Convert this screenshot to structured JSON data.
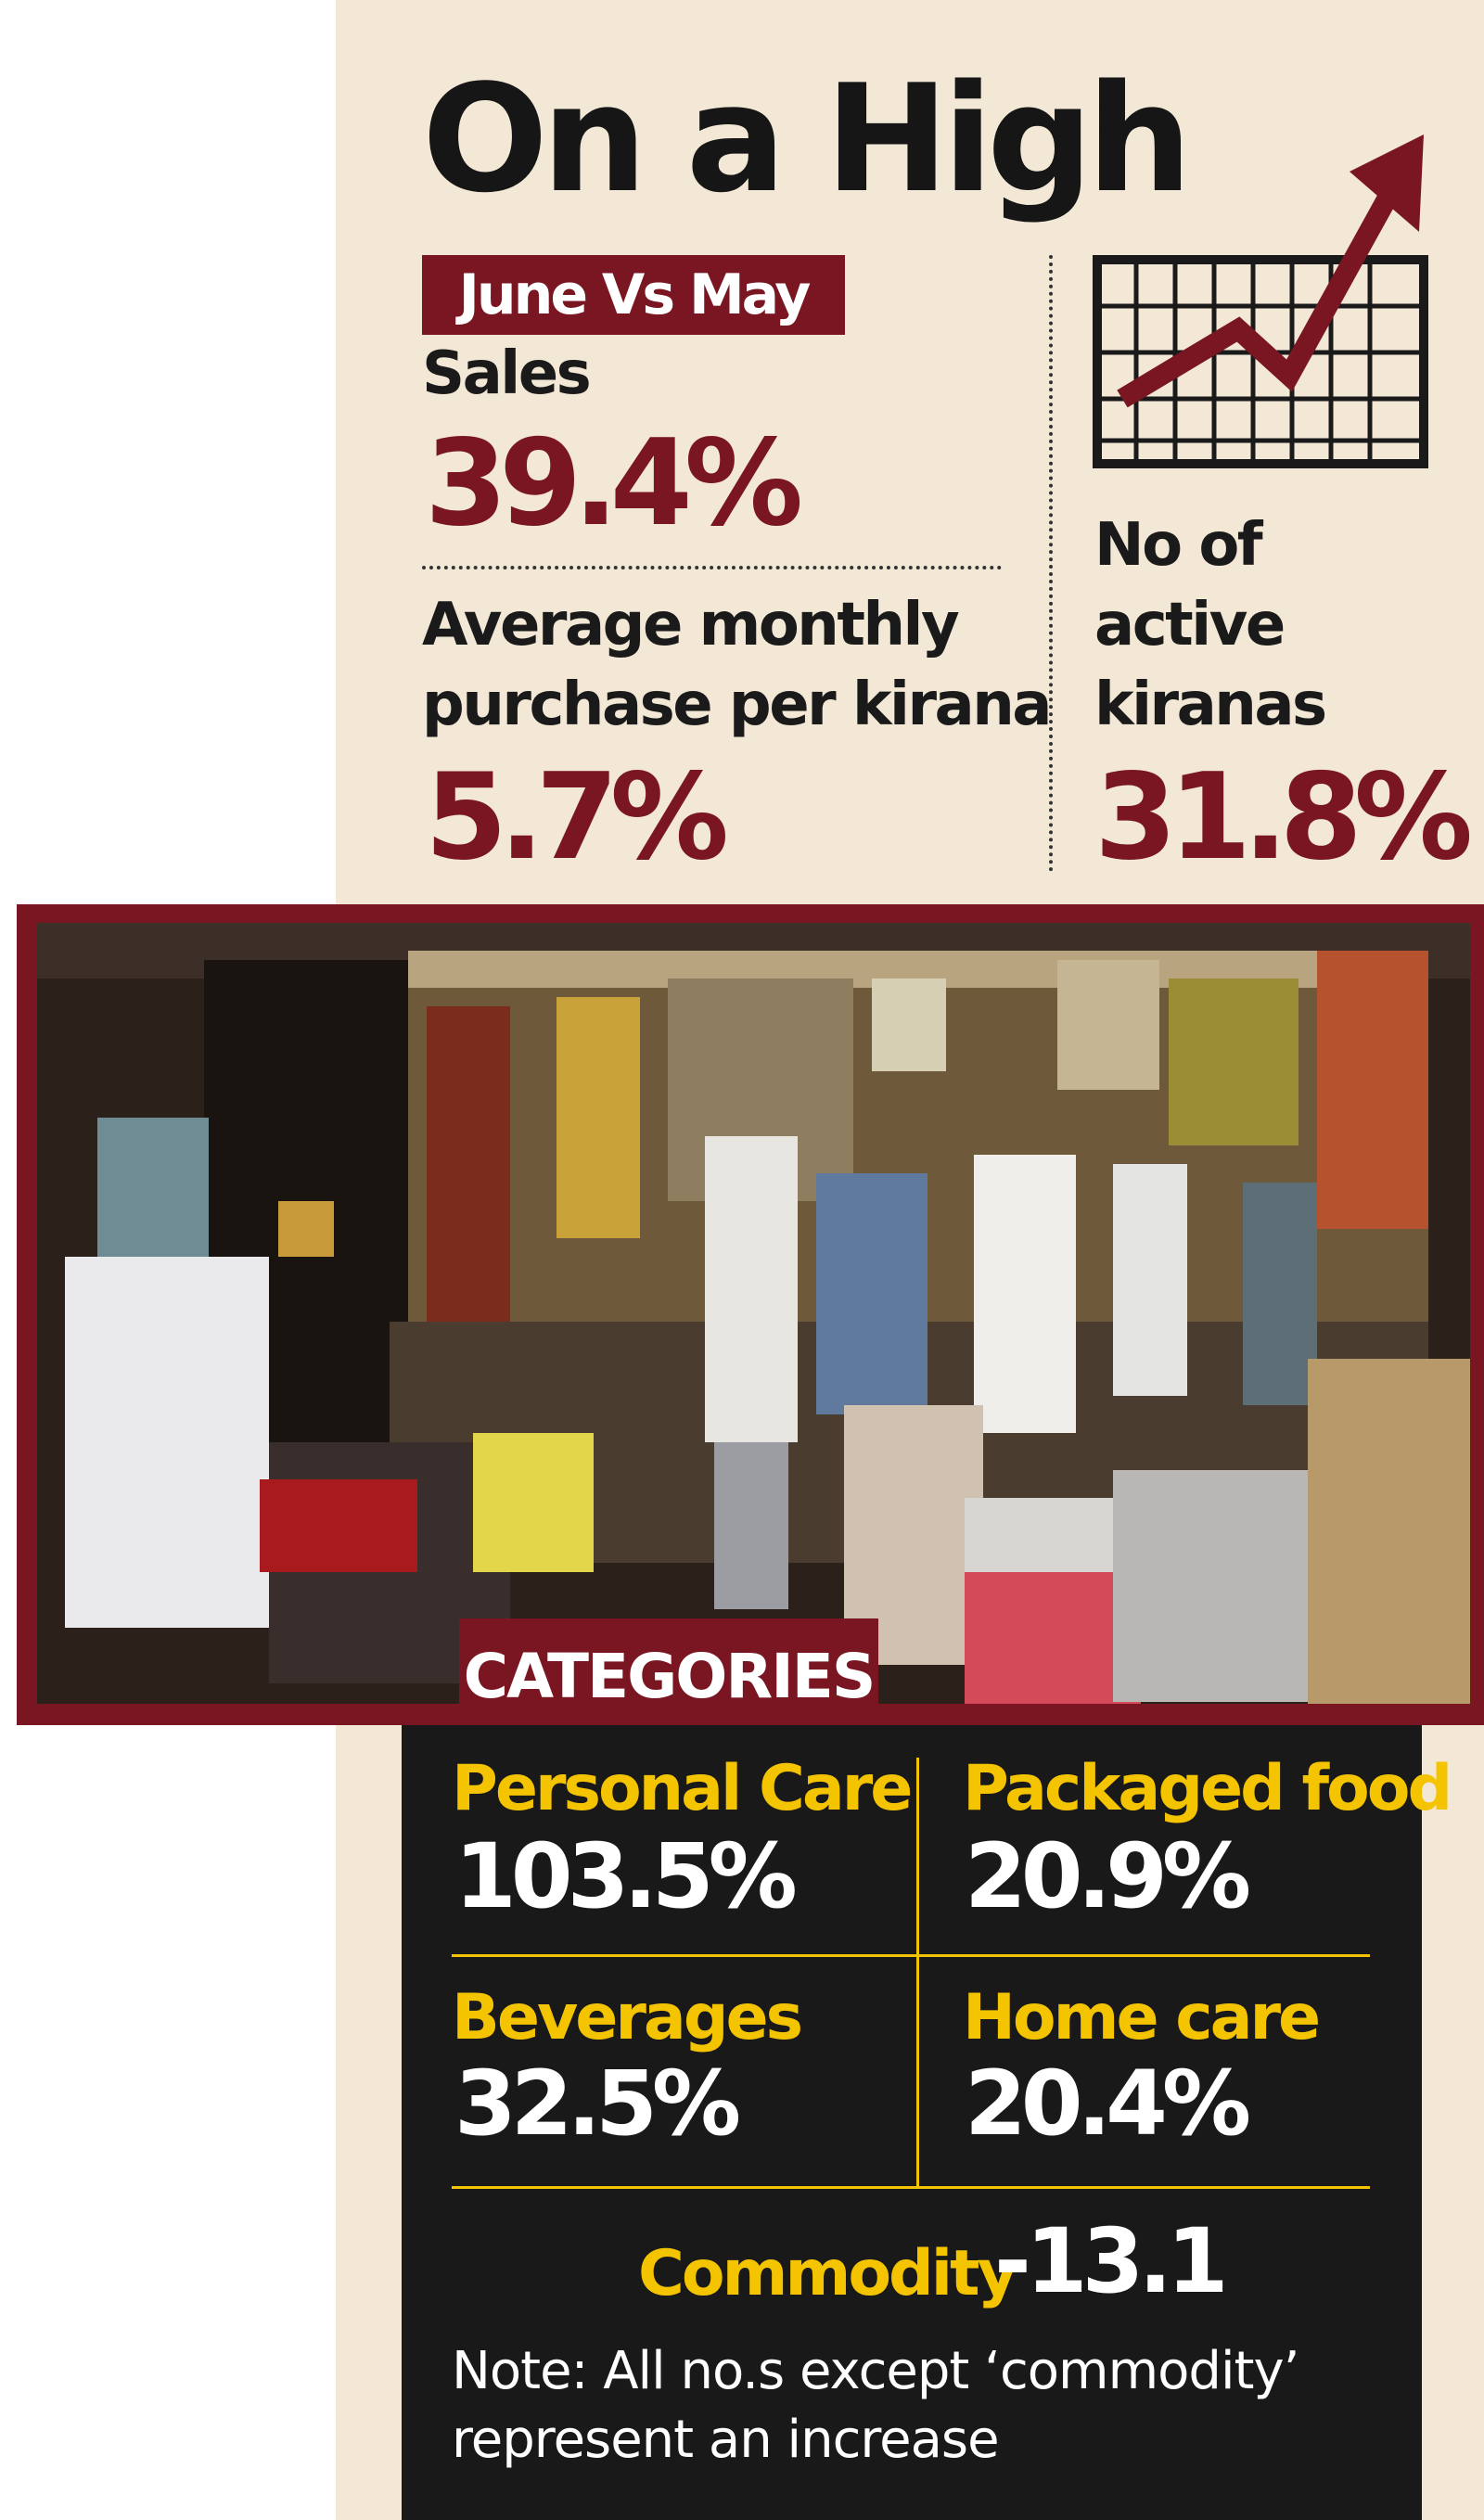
{
  "title": "On a High",
  "period_tag": "June Vs May",
  "metrics": [
    {
      "label": "Sales",
      "value": "39.4%"
    },
    {
      "label_line1": "Average monthly",
      "label_line2": "purchase per kirana",
      "value": "5.7%"
    },
    {
      "label_line1": "No of",
      "label_line2": "active",
      "label_line3": "kiranas",
      "value": "31.8%"
    }
  ],
  "categories_heading": "CATEGORIES",
  "categories": [
    {
      "name": "Personal Care",
      "value": "103.5%"
    },
    {
      "name": "Packaged food",
      "value": "20.9%"
    },
    {
      "name": "Beverages",
      "value": "32.5%"
    },
    {
      "name": "Home care",
      "value": "20.4%"
    }
  ],
  "commodity": {
    "name": "Commodity",
    "value": "-13.1"
  },
  "note_line1": "Note: All no.s except ‘commodity’",
  "note_line2": "represent an increase",
  "colors": {
    "maroon": "#7a1622",
    "cream": "#f2e8d5",
    "yellow": "#f5c400",
    "dark": "#191919"
  },
  "icons": [
    "growth-chart-icon"
  ]
}
